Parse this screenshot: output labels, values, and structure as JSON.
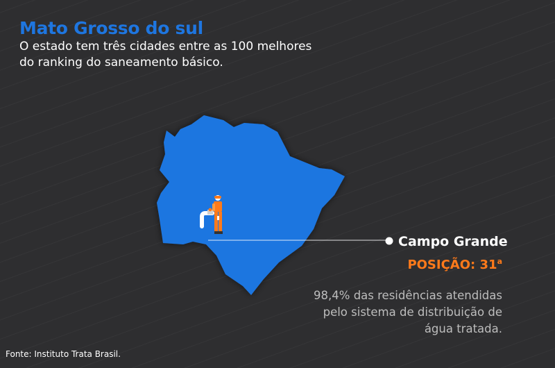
{
  "header": {
    "title": "Mato Grosso do sul",
    "subtitle": "O estado tem três cidades entre as 100 melhores do ranking do saneamento básico."
  },
  "city": {
    "name": "Campo Grande",
    "position_label": "POSIÇÃO: 31",
    "position_suffix": "a",
    "description": "98,4% das residências atendidas pelo sistema de distribuição de água tratada."
  },
  "footer": {
    "source": "Fonte: Instituto Trata Brasil."
  },
  "colors": {
    "background": "#2e2e30",
    "state_fill": "#1e76e0",
    "title": "#1e76e0",
    "accent": "#ff7a1a",
    "description": "#bdbdbd"
  },
  "icons": {
    "marker": "location-dot",
    "worker": "worker-with-water-pipe-icon"
  }
}
